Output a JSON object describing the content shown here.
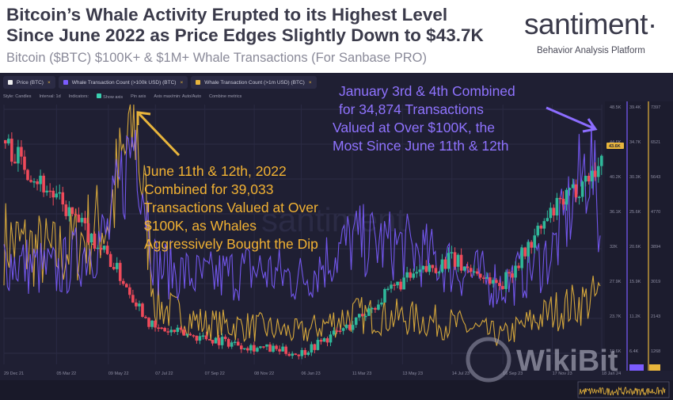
{
  "header": {
    "title_line1": "Bitcoin’s Whale Activity Erupted to its Highest Level",
    "title_line2": "Since June 2022 as Price Edges Slightly Down to $43.7K",
    "subtitle": "Bitcoin ($BTC) $100K+ & $1M+ Whale Transactions (For Sanbase PRO)",
    "logo": "santiment·",
    "logo_sub": "Behavior Analysis Platform"
  },
  "tabs": [
    {
      "label": "Price (BTC)",
      "color": "#f0f0f0"
    },
    {
      "label": "Whale Transaction Count (>100k USD) (BTC)",
      "color": "#7b5cff"
    },
    {
      "label": "Whale Transaction Count (>1m USD) (BTC)",
      "color": "#e8b53c"
    }
  ],
  "toolbar": [
    "Style: Candles",
    "Interval: 1d",
    "Indicators:",
    "Show axis",
    "Pin axis",
    "Axis max/min: Auto/Auto",
    "Combine metrics"
  ],
  "annotations": {
    "june_line1": "June 11th & 12th, 2022",
    "june_line2": "Combined for 39,033",
    "june_line3": "Transactions Valued at Over",
    "june_line4": "$100K, as Whales",
    "june_line5": "Aggressively Bought the Dip",
    "jan_line1": "January 3rd & 4th Combined",
    "jan_line2": "for 34,874 Transactions",
    "jan_line3": "Valued at Over $100K, the",
    "jan_line4": "Most Since June 11th & 12th"
  },
  "watermark": "santiment",
  "wikibit": "WikiBit",
  "price_axis": [
    "48.5K",
    "44.6K",
    "40.2K",
    "36.1K",
    "32K",
    "27.9K",
    "23.7K",
    "19.6K"
  ],
  "whale100k_axis": [
    "39.4K",
    "34.7K",
    "30.3K",
    "25.6K",
    "20.6K",
    "15.9K",
    "11.2K",
    "6.4K"
  ],
  "whale1m_axis": [
    "7397",
    "6521",
    "5643",
    "4770",
    "3894",
    "3019",
    "2143",
    "1268"
  ],
  "price_badge": "43.6K",
  "x_labels": [
    "29 Dec 21",
    "05 Mar 22",
    "09 May 22",
    "07 Jul 22",
    "07 Sep 22",
    "08 Nov 22",
    "06 Jan 23",
    "11 Mar 23",
    "13 May 23",
    "14 Jul 23",
    "16 Sep 23",
    "17 Nov 23",
    "18 Jan 24"
  ],
  "chart_data": {
    "type": "line",
    "title": "Bitcoin ($BTC) $100K+ & $1M+ Whale Transactions (For Sanbase PRO)",
    "x_range": [
      "29 Dec 21",
      "18 Jan 24"
    ],
    "series": [
      {
        "name": "Price (BTC)",
        "style": "candles",
        "color": "#2fb89a",
        "down_color": "#ef4a5a",
        "ylim": [
          15500,
          52000
        ],
        "x": [
          "29 Dec 21",
          "05 Mar 22",
          "09 May 22",
          "07 Jul 22",
          "07 Sep 22",
          "08 Nov 22",
          "06 Jan 23",
          "11 Mar 23",
          "13 May 23",
          "14 Jul 23",
          "16 Sep 23",
          "17 Nov 23",
          "18 Jan 24"
        ],
        "values": [
          47000,
          39000,
          31000,
          20500,
          19300,
          18000,
          17000,
          21000,
          27000,
          30300,
          26600,
          36500,
          43600
        ]
      },
      {
        "name": "Whale Transaction Count (>100k USD) (BTC)",
        "color": "#7b5cff",
        "ylim": [
          3000,
          44000
        ],
        "x": [
          "29 Dec 21",
          "05 Mar 22",
          "09 May 22",
          "12 Jun 22",
          "07 Jul 22",
          "07 Sep 22",
          "08 Nov 22",
          "06 Jan 23",
          "11 Mar 23",
          "13 May 23",
          "14 Jul 23",
          "16 Sep 23",
          "17 Nov 23",
          "04 Jan 24",
          "18 Jan 24"
        ],
        "values": [
          19000,
          17000,
          23000,
          39033,
          18000,
          16000,
          17500,
          16000,
          22000,
          21000,
          18000,
          15000,
          20000,
          34874,
          21000
        ]
      },
      {
        "name": "Whale Transaction Count (>1m USD) (BTC)",
        "color": "#e8b53c",
        "ylim": [
          300,
          9000
        ],
        "x": [
          "29 Dec 21",
          "05 Mar 22",
          "09 May 22",
          "12 Jun 22",
          "07 Jul 22",
          "07 Sep 22",
          "08 Nov 22",
          "06 Jan 23",
          "11 Mar 23",
          "13 May 23",
          "14 Jul 23",
          "16 Sep 23",
          "17 Nov 23",
          "18 Jan 24"
        ],
        "values": [
          4300,
          3800,
          5000,
          8300,
          2200,
          1600,
          1500,
          1300,
          1900,
          1800,
          1600,
          1200,
          2000,
          2500
        ]
      }
    ]
  }
}
